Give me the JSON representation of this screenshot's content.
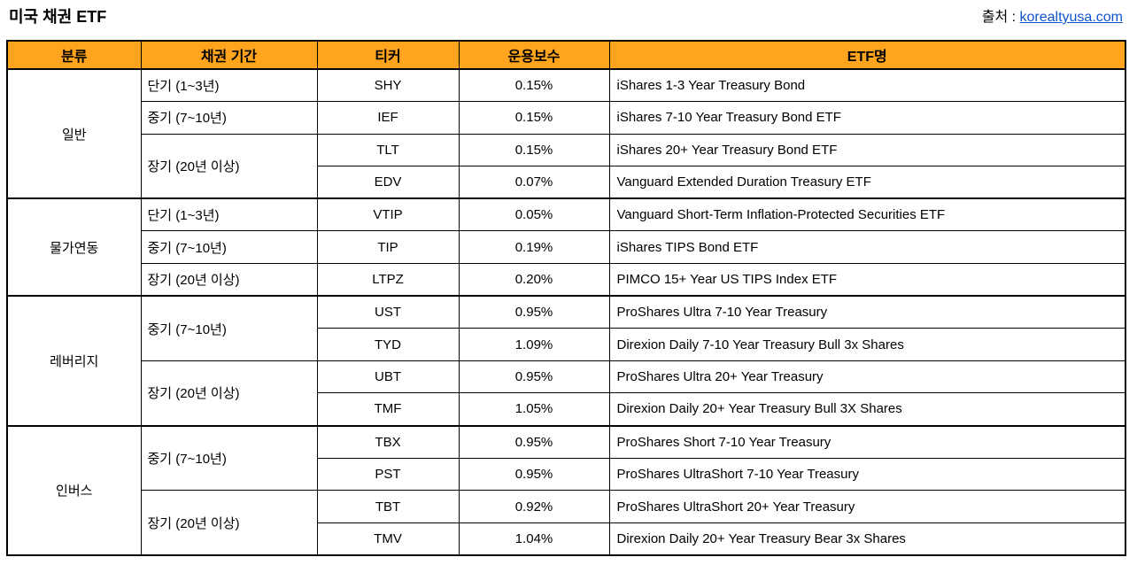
{
  "page": {
    "title": "미국 채권 ETF",
    "source_label": "출처 : ",
    "source_link": "korealtyusa.com"
  },
  "colors": {
    "header_bg": "#FFA41C",
    "border": "#000000",
    "link": "#1155CC",
    "text": "#000000",
    "background": "#FFFFFF"
  },
  "table": {
    "headers": [
      "분류",
      "채권 기간",
      "티커",
      "운용보수",
      "ETF명"
    ],
    "groups": [
      {
        "category": "일반",
        "durations": [
          {
            "label": "단기 (1~3년)",
            "etfs": [
              {
                "ticker": "SHY",
                "fee": "0.15%",
                "name": "iShares 1-3 Year Treasury Bond"
              }
            ]
          },
          {
            "label": "중기 (7~10년)",
            "etfs": [
              {
                "ticker": "IEF",
                "fee": "0.15%",
                "name": "iShares 7-10 Year Treasury Bond ETF"
              }
            ]
          },
          {
            "label": "장기 (20년 이상)",
            "etfs": [
              {
                "ticker": "TLT",
                "fee": "0.15%",
                "name": "iShares 20+ Year Treasury Bond ETF"
              },
              {
                "ticker": "EDV",
                "fee": "0.07%",
                "name": "Vanguard Extended Duration Treasury ETF"
              }
            ]
          }
        ]
      },
      {
        "category": "물가연동",
        "durations": [
          {
            "label": "단기 (1~3년)",
            "etfs": [
              {
                "ticker": "VTIP",
                "fee": "0.05%",
                "name": "Vanguard Short-Term Inflation-Protected Securities ETF"
              }
            ]
          },
          {
            "label": "중기 (7~10년)",
            "etfs": [
              {
                "ticker": "TIP",
                "fee": "0.19%",
                "name": "iShares TIPS Bond ETF"
              }
            ]
          },
          {
            "label": "장기 (20년 이상)",
            "etfs": [
              {
                "ticker": "LTPZ",
                "fee": "0.20%",
                "name": "PIMCO 15+ Year US TIPS Index ETF"
              }
            ]
          }
        ]
      },
      {
        "category": "레버리지",
        "durations": [
          {
            "label": "중기 (7~10년)",
            "etfs": [
              {
                "ticker": "UST",
                "fee": "0.95%",
                "name": "ProShares Ultra 7-10 Year Treasury"
              },
              {
                "ticker": "TYD",
                "fee": "1.09%",
                "name": "Direxion Daily 7-10 Year Treasury Bull 3x Shares"
              }
            ]
          },
          {
            "label": "장기 (20년 이상)",
            "etfs": [
              {
                "ticker": "UBT",
                "fee": "0.95%",
                "name": "ProShares Ultra 20+ Year Treasury"
              },
              {
                "ticker": "TMF",
                "fee": "1.05%",
                "name": "Direxion Daily 20+ Year Treasury Bull 3X Shares"
              }
            ]
          }
        ]
      },
      {
        "category": "인버스",
        "durations": [
          {
            "label": "중기 (7~10년)",
            "etfs": [
              {
                "ticker": "TBX",
                "fee": "0.95%",
                "name": "ProShares Short 7-10 Year Treasury"
              },
              {
                "ticker": "PST",
                "fee": "0.95%",
                "name": "ProShares UltraShort 7-10 Year Treasury"
              }
            ]
          },
          {
            "label": "장기 (20년 이상)",
            "etfs": [
              {
                "ticker": "TBT",
                "fee": "0.92%",
                "name": "ProShares UltraShort 20+ Year Treasury"
              },
              {
                "ticker": "TMV",
                "fee": "1.04%",
                "name": "Direxion Daily 20+ Year Treasury Bear 3x Shares"
              }
            ]
          }
        ]
      }
    ]
  }
}
